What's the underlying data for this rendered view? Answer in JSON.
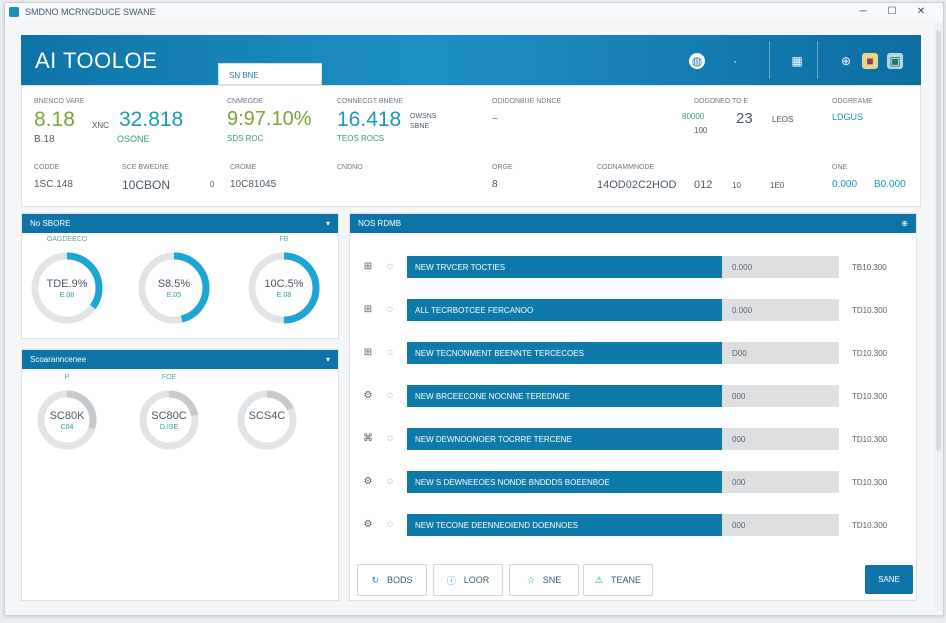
{
  "window": {
    "title": "SMDNO MCRNGDUCE SWANE",
    "controls": [
      "─",
      "☐",
      "✕"
    ]
  },
  "banner": {
    "brand": "AI TOOLOE",
    "dropdown": "SN BNE",
    "icons": [
      "globe-icon",
      "user-icon",
      "grid-icon",
      "globe-icon",
      "settings-icon",
      "star-icon"
    ]
  },
  "stats": {
    "labels": [
      "BNENCO VARE",
      "CNMEGDE",
      "CONNECGT BNENE",
      "ODIDONBUE NDNCE",
      "DOGDNEO TO E",
      "ODGREAME",
      "CODDE",
      "SCE BWEDNE",
      "CROME",
      "CNDNO",
      "ORGE",
      "CODNAMMNODE",
      "ONE"
    ],
    "big1": "8.18",
    "small1": "XNC",
    "big2": "32.818",
    "small2": "OSONE",
    "big3": "9:97.10%",
    "big4": "16.418",
    "small4a": "OWSNS",
    "small4b": "SBNE",
    "sub1": "B.18",
    "sub2": "SDS ROC",
    "sub4": "TEOS ROCS",
    "d1": "−",
    "d2": "80000",
    "d3": "23",
    "d4": "100",
    "d5": "LEOS",
    "d6": "LDGUS",
    "row2": [
      "1SC.148",
      "10CBON",
      "0",
      "10C81045",
      "8",
      "14OD02C2HOD",
      "012",
      "10",
      "1E0",
      "0.000",
      "B0.000"
    ]
  },
  "panel1": {
    "title": "No SBORE",
    "collapse": "▾",
    "gauges": [
      {
        "label": "OAGDEECO",
        "value": "TDE.9%",
        "sub": "E.08",
        "fill": 0.35
      },
      {
        "label": "",
        "value": "S8.5%",
        "sub": "E.05",
        "fill": 0.46
      },
      {
        "label": "FB",
        "value": "10C.5%",
        "sub": "E.08",
        "fill": 0.5
      }
    ]
  },
  "panel2": {
    "title": "Scoaranncenee",
    "collapse": "▾",
    "gauges": [
      {
        "label": "P",
        "value": "SC80K",
        "sub": "C04",
        "fill": 0.3
      },
      {
        "label": "FOE",
        "value": "SC80C",
        "sub": "D.ISE",
        "fill": 0.22
      },
      {
        "label": "",
        "value": "SCS4C",
        "sub": "",
        "fill": 0.18
      }
    ]
  },
  "panel3": {
    "title": "NOS RDMB",
    "icon": "⊕",
    "rows": [
      {
        "label": "NEW TRVCER TOCTIES",
        "value": "0.000",
        "right": "TB10.300",
        "fill": 0.73
      },
      {
        "label": "ALL TECRBOTCEE FERCANOO",
        "value": "0.000",
        "right": "TD10.300",
        "fill": 0.73
      },
      {
        "label": "NEW TECNONMENT BEENNTE TERCECOES",
        "value": "D00",
        "right": "TD10.300",
        "fill": 0.73
      },
      {
        "label": "NEW BRCEECONE NOCNNE TEREDNOE",
        "value": "000",
        "right": "TD10.300",
        "fill": 0.73
      },
      {
        "label": "NEW DEWNOONOER TOCRRE TERCENE",
        "value": "000",
        "right": "TD10.300",
        "fill": 0.73
      },
      {
        "label": "NEW S DEWNEEOES NONDE BNDDDS BOEENBOE",
        "value": "000",
        "right": "TD10.300",
        "fill": 0.73
      },
      {
        "label": "NEW TECONE DEENNEOIEND DOENNOES",
        "value": "000",
        "right": "TD10.300",
        "fill": 0.73
      }
    ]
  },
  "actions": [
    {
      "icon": "refresh-icon",
      "label": "BODS"
    },
    {
      "icon": "info-icon",
      "label": "LOOR"
    },
    {
      "icon": "star-icon",
      "label": "SNE"
    },
    {
      "icon": "alert-icon",
      "label": "TEANE"
    }
  ],
  "primary": "SANE"
}
